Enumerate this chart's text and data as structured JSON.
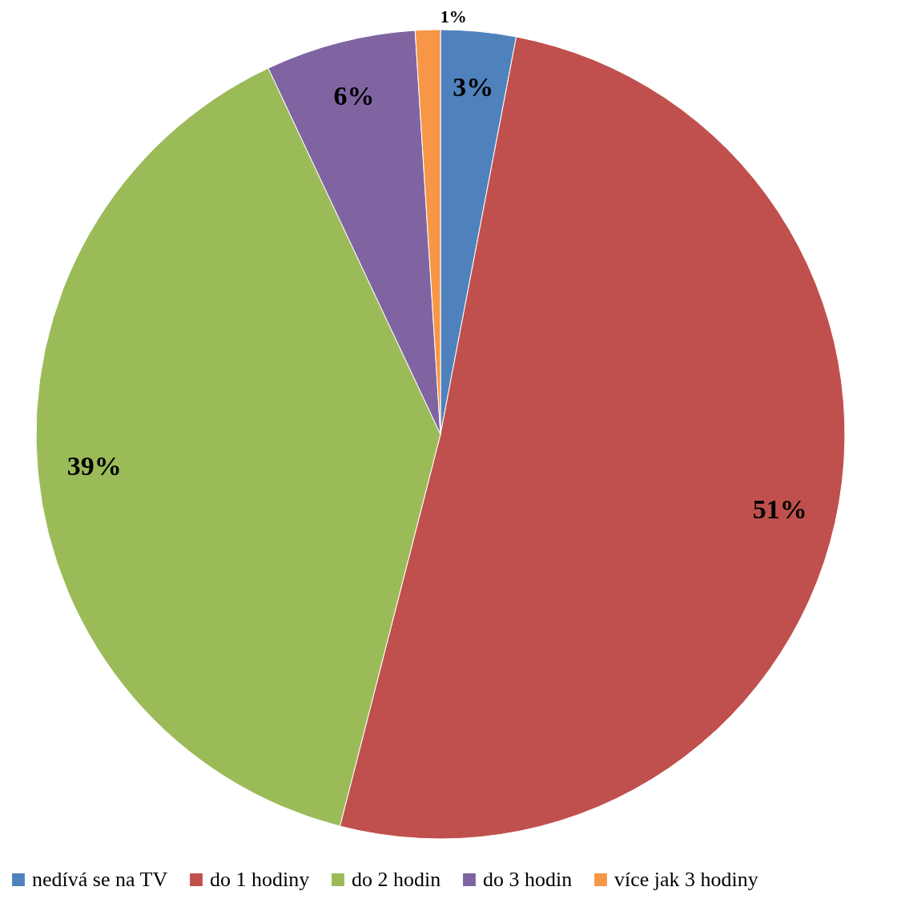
{
  "chart_data": {
    "type": "pie",
    "categories": [
      "nedívá se na TV",
      "do 1 hodiny",
      "do 2 hodin",
      "do 3 hodin",
      "více jak 3 hodiny"
    ],
    "values": [
      3,
      51,
      39,
      6,
      1
    ],
    "colors": [
      "#4f81bd",
      "#c0504d",
      "#9bbb59",
      "#8064a2",
      "#f79646"
    ],
    "value_labels": [
      "3%",
      "51%",
      "39%",
      "6%",
      "1%"
    ],
    "legend": "bottom"
  }
}
